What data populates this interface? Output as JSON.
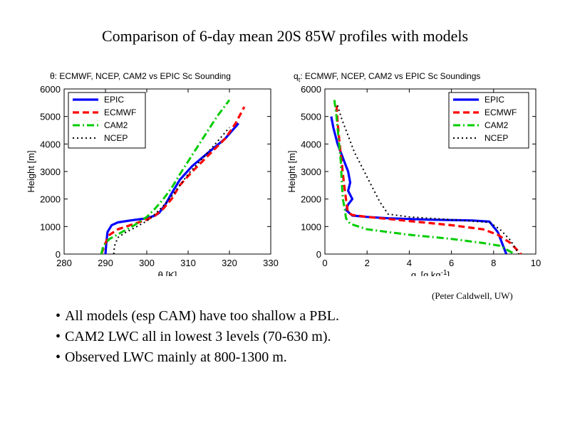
{
  "slide": {
    "title": "Comparison of 6-day mean 20S 85W profiles with models",
    "credit": "(Peter Caldwell, UW)",
    "bullets": [
      "All models (esp CAM) have too shallow a PBL.",
      "CAM2 LWC all in lowest 3 levels (70-630 m).",
      "Observed LWC mainly at 800-1300 m."
    ]
  },
  "colors": {
    "EPIC": "#0000ff",
    "ECMWF": "#ff0000",
    "CAM2": "#00cc00",
    "NCEP": "#000000"
  },
  "chart_data": [
    {
      "type": "line",
      "title": "θ: ECMWF, NCEP, CAM2 vs EPIC Sc Sounding",
      "xlabel": "θ  [K]",
      "ylabel": "Height [m]",
      "xlim": [
        280,
        330
      ],
      "ylim": [
        0,
        6000
      ],
      "xticks": [
        "280",
        "290",
        "300",
        "310",
        "320",
        "330"
      ],
      "yticks": [
        "0",
        "1000",
        "2000",
        "3000",
        "4000",
        "5000",
        "6000"
      ],
      "grid": false,
      "legend": "top-left",
      "series": [
        {
          "name": "EPIC",
          "style": "solid",
          "x": [
            290.0,
            290.2,
            290.5,
            291.5,
            293.0,
            296.0,
            300.0,
            302.0,
            303.0,
            304.5,
            306.0,
            308.0,
            311.0,
            315.0,
            319.0,
            322.2
          ],
          "y": [
            0,
            400,
            800,
            1050,
            1150,
            1220,
            1300,
            1400,
            1500,
            1800,
            2200,
            2700,
            3200,
            3700,
            4200,
            4750
          ]
        },
        {
          "name": "ECMWF",
          "style": "dashed",
          "x": [
            289.0,
            290.0,
            291.0,
            293.0,
            296.0,
            300.0,
            302.0,
            304.0,
            306.0,
            308.0,
            311.0,
            315.0,
            319.0,
            321.5,
            323.6
          ],
          "y": [
            0,
            400,
            700,
            900,
            1050,
            1250,
            1400,
            1650,
            2000,
            2500,
            3000,
            3600,
            4200,
            4750,
            5350
          ]
        },
        {
          "name": "CAM2",
          "style": "dashdot",
          "x": [
            289.0,
            289.5,
            291.0,
            294.0,
            297.0,
            300.0,
            302.0,
            304.0,
            306.0,
            308.0,
            311.0,
            314.0,
            317.0,
            320.0
          ],
          "y": [
            0,
            300,
            550,
            800,
            1050,
            1350,
            1650,
            2000,
            2400,
            2900,
            3600,
            4300,
            5000,
            5600
          ]
        },
        {
          "name": "NCEP",
          "style": "dotted",
          "x": [
            292.0,
            292.2,
            293.0,
            295.0,
            297.0,
            300.0,
            302.0,
            304.0,
            306.0,
            308.0,
            310.0,
            313.0,
            316.0,
            320.0
          ],
          "y": [
            0,
            300,
            600,
            800,
            950,
            1200,
            1450,
            1750,
            2100,
            2500,
            2900,
            3400,
            3900,
            4600
          ]
        }
      ]
    },
    {
      "type": "line",
      "title": "q",
      "title_sub": "t",
      "title_rest": ": ECMWF, NCEP, CAM2 vs EPIC Sc Soundings",
      "xlabel": "q",
      "xlabel_sub": "t",
      "xlabel_rest": "  [g kg",
      "xlabel_sup": "-1",
      "xlabel_end": "]",
      "ylabel": "Height [m]",
      "xlim": [
        0,
        10
      ],
      "ylim": [
        0,
        6000
      ],
      "xticks": [
        "0",
        "2",
        "4",
        "6",
        "8",
        "10"
      ],
      "yticks": [
        "0",
        "1000",
        "2000",
        "3000",
        "4000",
        "5000",
        "6000"
      ],
      "grid": false,
      "legend": "top-right",
      "series": [
        {
          "name": "EPIC",
          "style": "solid",
          "x": [
            0.3,
            0.4,
            0.6,
            0.85,
            1.0,
            1.1,
            1.2,
            1.1,
            1.3,
            1.1,
            1.0,
            1.3,
            2.0,
            3.0,
            5.0,
            7.0,
            7.8,
            8.2,
            8.4,
            8.6
          ],
          "y": [
            5000,
            4600,
            4000,
            3500,
            3200,
            3000,
            2600,
            2300,
            2000,
            1800,
            1600,
            1400,
            1350,
            1300,
            1250,
            1220,
            1180,
            800,
            400,
            0
          ]
        },
        {
          "name": "ECMWF",
          "style": "dashed",
          "x": [
            0.55,
            0.6,
            0.7,
            0.8,
            0.9,
            1.0,
            1.05,
            1.1,
            1.3,
            2.0,
            4.0,
            6.0,
            7.5,
            8.2,
            8.8,
            9.3
          ],
          "y": [
            5400,
            4800,
            4000,
            3300,
            2600,
            2000,
            1700,
            1500,
            1420,
            1350,
            1200,
            1050,
            900,
            700,
            400,
            0
          ]
        },
        {
          "name": "CAM2",
          "style": "dashdot",
          "x": [
            0.45,
            0.55,
            0.65,
            0.75,
            0.8,
            0.85,
            0.9,
            0.95,
            1.0,
            1.2,
            2.0,
            4.0,
            6.0,
            7.5,
            8.3,
            9.0
          ],
          "y": [
            5600,
            5000,
            4200,
            3400,
            2600,
            2000,
            1800,
            1600,
            1300,
            1100,
            900,
            700,
            550,
            400,
            300,
            0
          ]
        },
        {
          "name": "NCEP",
          "style": "dotted",
          "x": [
            0.6,
            0.8,
            1.1,
            1.4,
            1.8,
            2.2,
            2.6,
            3.0,
            4.0,
            6.0,
            7.8,
            8.3,
            8.8,
            9.2
          ],
          "y": [
            5400,
            4900,
            4300,
            3700,
            3100,
            2500,
            1900,
            1450,
            1350,
            1250,
            1150,
            900,
            500,
            0
          ]
        }
      ]
    }
  ]
}
